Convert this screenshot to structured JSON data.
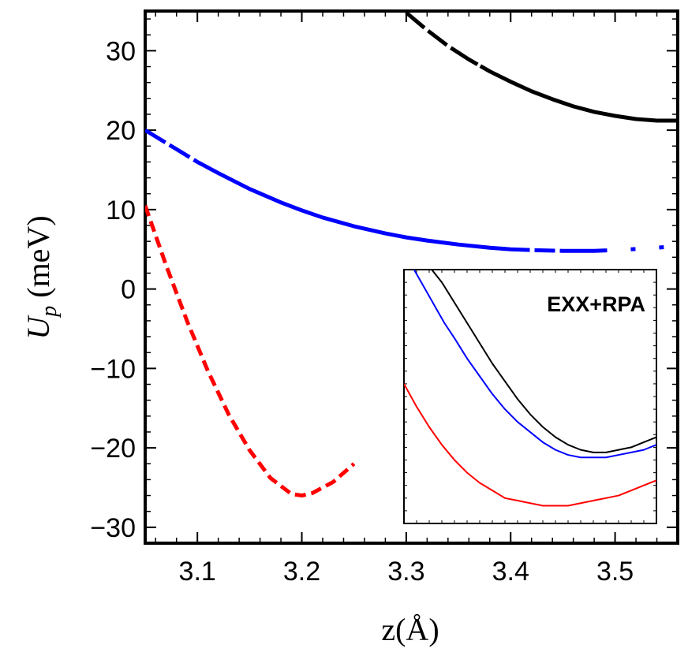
{
  "chart_data": [
    {
      "type": "line",
      "title": "",
      "xlabel": "z(Å)",
      "ylabel": "U",
      "ylabel_subscript": "p",
      "ylabel_unit": "(meV)",
      "xlim": [
        3.05,
        3.56
      ],
      "ylim": [
        -32,
        35
      ],
      "xticks": [
        3.1,
        3.2,
        3.3,
        3.4,
        3.5
      ],
      "xtick_labels": [
        "3.1",
        "3.2",
        "3.3",
        "3.4",
        "3.5"
      ],
      "yticks": [
        -30,
        -20,
        -10,
        0,
        10,
        20,
        30
      ],
      "ytick_labels": [
        "−30",
        "−20",
        "−10",
        "0",
        "10",
        "20",
        "30"
      ],
      "series": [
        {
          "name": "black",
          "color": "#000000",
          "dash": "dashed-to-solid",
          "x": [
            3.3,
            3.32,
            3.34,
            3.36,
            3.38,
            3.4,
            3.42,
            3.44,
            3.46,
            3.48,
            3.5,
            3.52,
            3.54,
            3.56
          ],
          "y": [
            34.8,
            32.6,
            30.6,
            28.9,
            27.4,
            26.1,
            24.9,
            23.9,
            23.0,
            22.3,
            21.8,
            21.4,
            21.2,
            21.2
          ]
        },
        {
          "name": "blue",
          "color": "#0000ff",
          "dash": "dashed-solid-dashed",
          "x": [
            3.05,
            3.08,
            3.1,
            3.12,
            3.15,
            3.18,
            3.2,
            3.22,
            3.25,
            3.28,
            3.3,
            3.32,
            3.35,
            3.38,
            3.4,
            3.42,
            3.45,
            3.48,
            3.5,
            3.53,
            3.56
          ],
          "y": [
            20.0,
            17.6,
            16.0,
            14.6,
            12.6,
            10.9,
            9.9,
            9.0,
            7.9,
            7.0,
            6.5,
            6.1,
            5.6,
            5.2,
            5.0,
            4.9,
            4.8,
            4.8,
            4.9,
            5.1,
            5.4
          ]
        },
        {
          "name": "red",
          "color": "#ff0000",
          "dash": "dashed",
          "x": [
            3.05,
            3.07,
            3.09,
            3.11,
            3.13,
            3.15,
            3.17,
            3.19,
            3.2,
            3.21,
            3.23,
            3.25
          ],
          "y": [
            10.5,
            3.0,
            -4.0,
            -10.3,
            -15.8,
            -20.3,
            -23.8,
            -25.8,
            -26.0,
            -25.7,
            -24.3,
            -22.0
          ]
        }
      ]
    },
    {
      "type": "line",
      "title": "EXX+RPA",
      "axis_ticks_only": true,
      "xlim": [
        0,
        1
      ],
      "ylim": [
        0,
        1
      ],
      "series": [
        {
          "name": "black",
          "color": "#000000",
          "x": [
            0.11,
            0.15,
            0.2,
            0.25,
            0.3,
            0.35,
            0.4,
            0.45,
            0.5,
            0.55,
            0.6,
            0.65,
            0.7,
            0.75,
            0.8,
            0.85,
            0.9,
            0.95,
            1.0
          ],
          "y": [
            1.0,
            0.95,
            0.87,
            0.79,
            0.71,
            0.63,
            0.56,
            0.49,
            0.43,
            0.38,
            0.34,
            0.31,
            0.29,
            0.28,
            0.28,
            0.29,
            0.3,
            0.32,
            0.34
          ]
        },
        {
          "name": "blue",
          "color": "#0000ff",
          "x": [
            0.04,
            0.08,
            0.12,
            0.16,
            0.2,
            0.25,
            0.3,
            0.35,
            0.4,
            0.45,
            0.5,
            0.55,
            0.6,
            0.65,
            0.7,
            0.75,
            0.8,
            0.85,
            0.9,
            0.95,
            1.0
          ],
          "y": [
            1.0,
            0.93,
            0.86,
            0.79,
            0.73,
            0.65,
            0.58,
            0.51,
            0.45,
            0.4,
            0.36,
            0.32,
            0.29,
            0.27,
            0.26,
            0.26,
            0.26,
            0.27,
            0.28,
            0.29,
            0.31
          ]
        },
        {
          "name": "red",
          "color": "#ff0000",
          "x": [
            0.0,
            0.05,
            0.1,
            0.15,
            0.2,
            0.25,
            0.3,
            0.35,
            0.4,
            0.45,
            0.5,
            0.55,
            0.6,
            0.65,
            0.7,
            0.75,
            0.8,
            0.85,
            0.9,
            0.95,
            1.0
          ],
          "y": [
            0.55,
            0.46,
            0.38,
            0.31,
            0.25,
            0.2,
            0.16,
            0.13,
            0.1,
            0.09,
            0.08,
            0.07,
            0.07,
            0.07,
            0.08,
            0.09,
            0.1,
            0.11,
            0.13,
            0.15,
            0.17
          ]
        }
      ]
    }
  ]
}
